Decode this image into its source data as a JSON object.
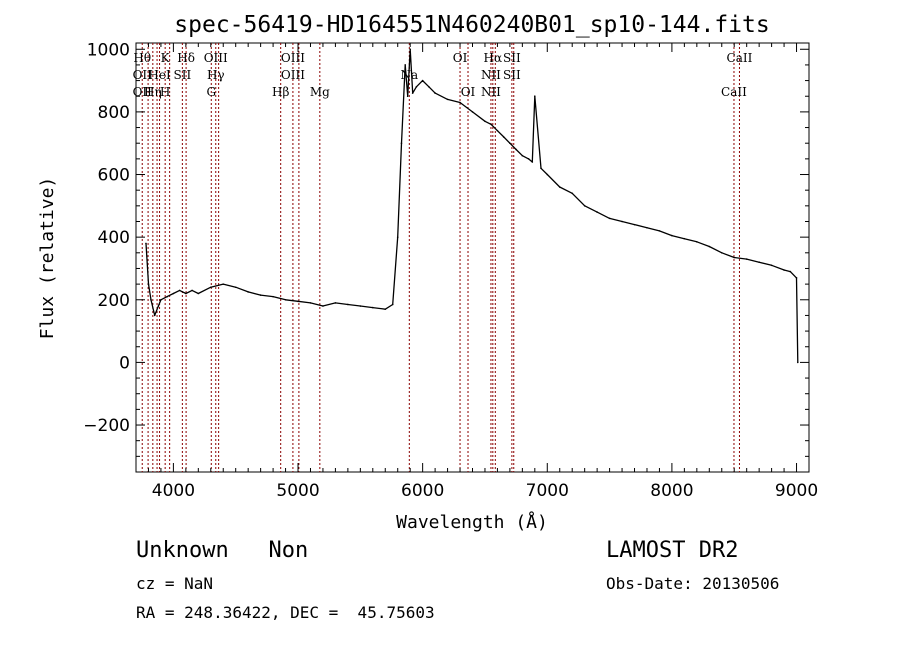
{
  "chart_data": {
    "type": "line",
    "title": "spec-56419-HD164551N460240B01_sp10-144.fits",
    "xlabel": "Wavelength (Å)",
    "ylabel": "Flux (relative)",
    "xlim": [
      3700,
      9100
    ],
    "ylim": [
      -350,
      1020
    ],
    "x_ticks": [
      4000,
      5000,
      6000,
      7000,
      8000,
      9000
    ],
    "y_ticks": [
      -200,
      0,
      200,
      400,
      600,
      800,
      1000
    ],
    "grid": false,
    "series": [
      {
        "x": [
          3780,
          3800,
          3820,
          3850,
          3880,
          3900,
          3950,
          4000,
          4050,
          4100,
          4150,
          4200,
          4300,
          4400,
          4500,
          4600,
          4700,
          4800,
          4900,
          5000,
          5100,
          5200,
          5300,
          5400,
          5500,
          5600,
          5700,
          5760,
          5800,
          5830,
          5860,
          5880,
          5900,
          5920,
          5950,
          6000,
          6050,
          6100,
          6200,
          6300,
          6400,
          6500,
          6550,
          6600,
          6650,
          6700,
          6750,
          6800,
          6850,
          6880,
          6900,
          6950,
          7000,
          7100,
          7200,
          7300,
          7400,
          7500,
          7600,
          7700,
          7800,
          7900,
          8000,
          8100,
          8200,
          8300,
          8400,
          8500,
          8600,
          8700,
          8800,
          8900,
          8950,
          9000,
          9010
        ],
        "y": [
          380,
          250,
          200,
          150,
          180,
          200,
          210,
          220,
          230,
          220,
          230,
          220,
          240,
          250,
          240,
          225,
          215,
          210,
          200,
          195,
          190,
          180,
          190,
          185,
          180,
          175,
          170,
          185,
          400,
          700,
          950,
          850,
          1000,
          860,
          880,
          900,
          880,
          860,
          840,
          830,
          800,
          770,
          760,
          740,
          720,
          700,
          680,
          660,
          650,
          640,
          850,
          620,
          600,
          560,
          540,
          500,
          480,
          460,
          450,
          440,
          430,
          420,
          405,
          395,
          385,
          370,
          350,
          335,
          330,
          320,
          310,
          295,
          290,
          270,
          0
        ]
      }
    ],
    "line_labels": [
      {
        "wavelength": 3750,
        "rows": [
          "Hθ",
          "OII",
          "OII"
        ]
      },
      {
        "wavelength": 3797,
        "rows": [
          "",
          "",
          ""
        ]
      },
      {
        "wavelength": 3835,
        "rows": [
          "",
          "",
          "Hη"
        ]
      },
      {
        "wavelength": 3869,
        "rows": [
          "",
          "",
          ""
        ]
      },
      {
        "wavelength": 3889,
        "rows": [
          "",
          "HeI",
          ""
        ]
      },
      {
        "wavelength": 3934,
        "rows": [
          "K",
          "",
          "H"
        ]
      },
      {
        "wavelength": 3970,
        "rows": [
          "",
          "",
          ""
        ]
      },
      {
        "wavelength": 4072,
        "rows": [
          "",
          "SII",
          ""
        ]
      },
      {
        "wavelength": 4102,
        "rows": [
          "Hδ",
          "",
          ""
        ]
      },
      {
        "wavelength": 4304,
        "rows": [
          "",
          "",
          "G"
        ]
      },
      {
        "wavelength": 4340,
        "rows": [
          "OIII",
          "Hγ",
          ""
        ]
      },
      {
        "wavelength": 4363,
        "rows": [
          "",
          "",
          ""
        ]
      },
      {
        "wavelength": 4861,
        "rows": [
          "",
          "",
          "Hβ"
        ]
      },
      {
        "wavelength": 4959,
        "rows": [
          "OIII",
          "OIII",
          ""
        ]
      },
      {
        "wavelength": 5007,
        "rows": [
          "",
          "",
          ""
        ]
      },
      {
        "wavelength": 5175,
        "rows": [
          "",
          "",
          "Mg"
        ]
      },
      {
        "wavelength": 5893,
        "rows": [
          "",
          "Na",
          ""
        ]
      },
      {
        "wavelength": 6300,
        "rows": [
          "OI",
          "",
          ""
        ]
      },
      {
        "wavelength": 6364,
        "rows": [
          "",
          "",
          "OI"
        ]
      },
      {
        "wavelength": 6548,
        "rows": [
          "",
          "NII",
          "NII"
        ]
      },
      {
        "wavelength": 6563,
        "rows": [
          "Hα",
          "",
          ""
        ]
      },
      {
        "wavelength": 6583,
        "rows": [
          "",
          "",
          ""
        ]
      },
      {
        "wavelength": 6716,
        "rows": [
          "SII",
          "SII",
          ""
        ]
      },
      {
        "wavelength": 6731,
        "rows": [
          "",
          "",
          ""
        ]
      },
      {
        "wavelength": 8498,
        "rows": [
          "",
          "",
          "CaII"
        ]
      },
      {
        "wavelength": 8542,
        "rows": [
          "CaII",
          "",
          ""
        ]
      }
    ]
  },
  "info": {
    "class_label": "Unknown   Non",
    "cz": "cz = NaN",
    "coords": "RA = 248.36422, DEC =  45.75603",
    "survey": "LAMOST DR2",
    "obs_date": "Obs-Date: 20130506"
  },
  "colors": {
    "line": "#000000",
    "marker": "#8b0000"
  }
}
